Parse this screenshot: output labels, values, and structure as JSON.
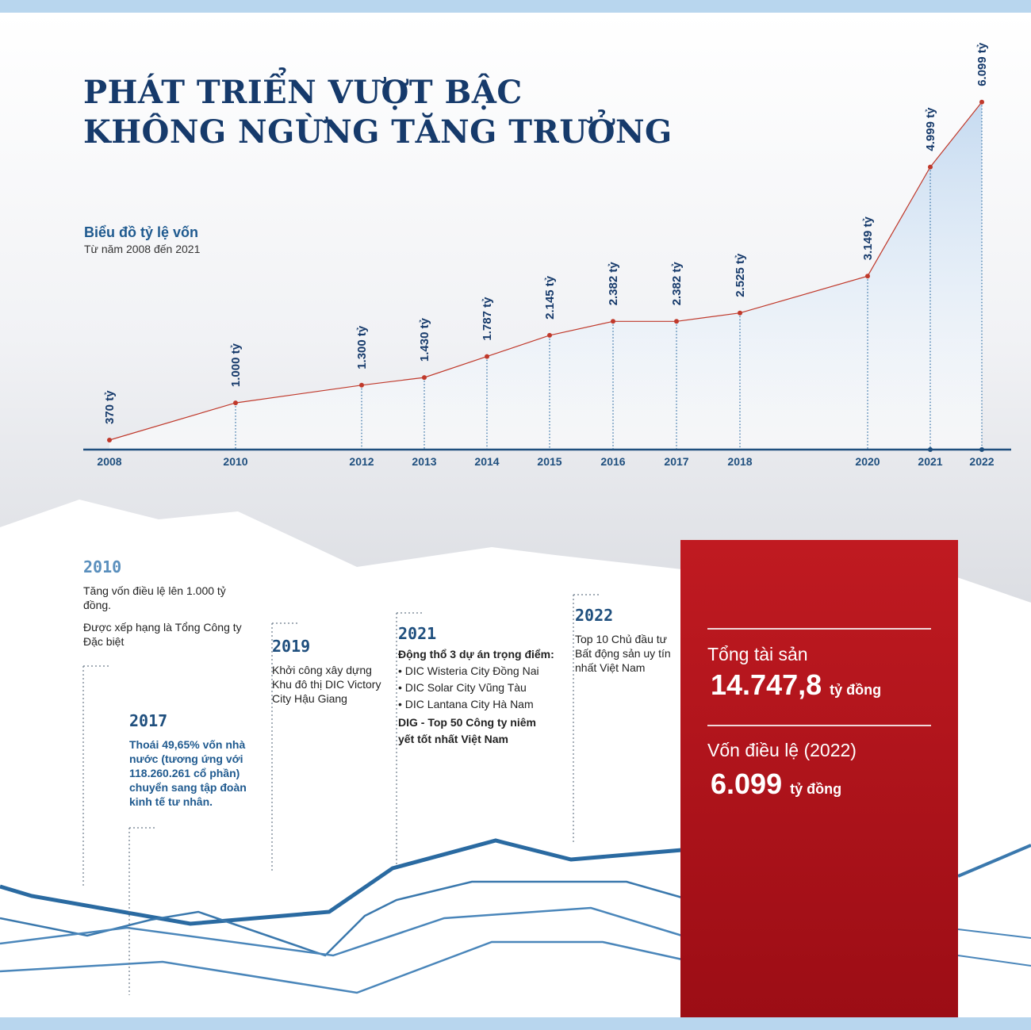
{
  "title": {
    "line1": "PHÁT TRIỂN VƯỢT BẬC",
    "line2": "KHÔNG NGỪNG TĂNG TRƯỞNG"
  },
  "chart_data": {
    "type": "area",
    "title": "Biểu đồ tỷ lệ vốn",
    "subtitle": "Từ năm 2008 đến 2021",
    "categories": [
      "2008",
      "2010",
      "2012",
      "2013",
      "2014",
      "2015",
      "2016",
      "2017",
      "2018",
      "2020",
      "2021",
      "2022"
    ],
    "values": [
      370,
      1000,
      1300,
      1430,
      1787,
      2145,
      2382,
      2382,
      2525,
      3149,
      4999,
      6099
    ],
    "labels": [
      "370 tỷ",
      "1.000 tỷ",
      "1.300 tỷ",
      "1.430 tỷ",
      "1.787 tỷ",
      "2.145 tỷ",
      "2.382 tỷ",
      "2.382 tỷ",
      "2.525 tỷ",
      "3.149 tỷ",
      "4.999 tỷ",
      "6.099 tỷ"
    ],
    "ylim": [
      0,
      6099
    ],
    "grid": false,
    "line_color": "#c0392b",
    "fill_color": "#c3d9f0",
    "axis_color": "#1f4f7e"
  },
  "timeline": {
    "y2010": {
      "year": "2010",
      "text1": "Tăng vốn điều lệ lên 1.000 tỷ đồng.",
      "text2": "Được xếp hạng là Tổng Công ty Đặc biệt"
    },
    "y2017": {
      "year": "2017",
      "text": "Thoái 49,65% vốn nhà nước (tương ứng với 118.260.261 cổ phần) chuyển sang tập đoàn kinh tế tư nhân."
    },
    "y2019": {
      "year": "2019",
      "text": "Khởi công xây dựng Khu đô thị DIC Victory City Hậu Giang"
    },
    "y2021": {
      "year": "2021",
      "heading": "Động thổ 3 dự án trọng điểm:",
      "items": [
        "• DIC Wisteria City Đồng Nai",
        "• DIC Solar City Vũng Tàu",
        "• DIC Lantana City Hà Nam"
      ],
      "footer": "DIG - Top 50 Công ty niêm yết tốt nhất Việt Nam"
    },
    "y2022": {
      "year": "2022",
      "text": "Top 10 Chủ đầu tư Bất động sản uy tín nhất Việt Nam"
    }
  },
  "summary": {
    "assets_label": "Tổng tài sản",
    "assets_value": "14.747,8",
    "assets_unit": "tỷ đồng",
    "capital_label": "Vốn điều lệ (2022)",
    "capital_value": "6.099",
    "capital_unit": "tỷ đồng"
  },
  "colors": {
    "navy": "#163a6b",
    "blue": "#1f5a8f",
    "red": "#b5141b",
    "light_blue": "#b8d6ee"
  }
}
